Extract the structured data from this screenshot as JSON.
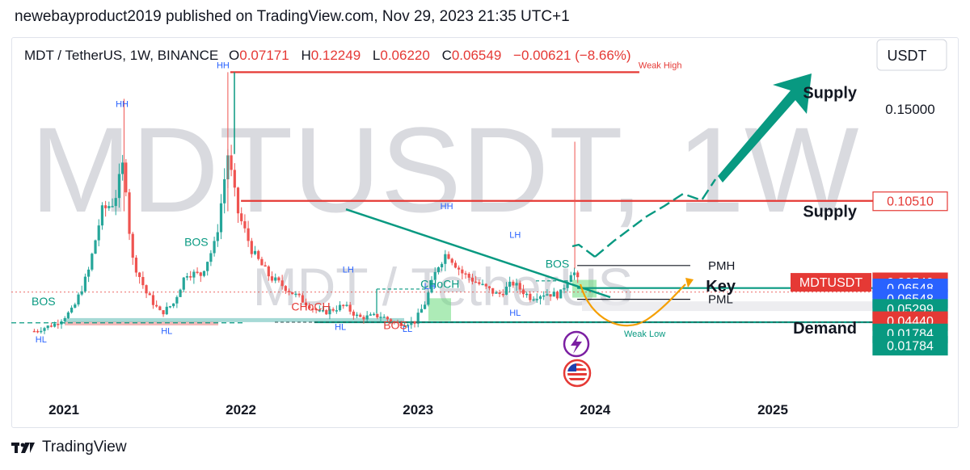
{
  "header": {
    "publisher_line": "newebayproduct2019 published on TradingView.com, Nov 29, 2023 21:35 UTC+1"
  },
  "footer": {
    "brand": "TradingView"
  },
  "symbol": {
    "name": "MDT / TetherUS, 1W, BINANCE",
    "o_label": "O",
    "open": "0.07171",
    "h_label": "H",
    "high": "0.12249",
    "l_label": "L",
    "low": "0.06220",
    "c_label": "C",
    "close": "0.06549",
    "change": "−0.00621 (−8.66%)",
    "watermark": "MDTUSDT, 1W",
    "watermark_small": "MDT / TetherUS"
  },
  "colors": {
    "up": "#26a69a",
    "down": "#ef5350",
    "trend": "#089981",
    "red_line": "#e53935",
    "orange": "#f59f00",
    "blue_tag": "#2962ff",
    "grey_text": "#131722"
  },
  "chart_data": {
    "type": "candlestick",
    "title": "MDT / TetherUS, 1W, BINANCE",
    "currency": "USDT",
    "x_ticks": [
      "2021",
      "2022",
      "2023",
      "2024",
      "2025"
    ],
    "x_tick_dates": [
      "2021-01-01",
      "2022-01-01",
      "2023-01-01",
      "2024-01-01",
      "2025-01-01"
    ],
    "y_ticks": [
      "0.15000"
    ],
    "y_tick_values": [
      0.15
    ],
    "price_tags": [
      {
        "label": "",
        "value": "0.10510",
        "style": "red-outline",
        "price": 0.1051
      },
      {
        "label": "MDTUSDT",
        "value": "0.06549",
        "style": "red",
        "price": 0.06549
      },
      {
        "label": "",
        "value": "0.06548",
        "style": "blue",
        "price": 0.0625
      },
      {
        "label": "",
        "value": "0.06548",
        "style": "blue",
        "price": 0.0575
      },
      {
        "label": "",
        "value": "0.05299",
        "style": "green",
        "price": 0.0525
      },
      {
        "label": "",
        "value": "0.04440",
        "style": "red",
        "price": 0.0465
      },
      {
        "label": "",
        "value": "0.01784",
        "style": "green",
        "price": 0.0405
      },
      {
        "label": "",
        "value": "0.01784",
        "style": "green",
        "price": 0.0345
      }
    ],
    "levels": [
      {
        "label": "Weak High",
        "price": 0.168,
        "color": "red",
        "from": "2021-12-10",
        "to": "2024-04-01"
      },
      {
        "label": "Supply",
        "price": 0.1051,
        "color": "red",
        "from": "2022-01-01",
        "to": "2025-08-01"
      },
      {
        "label": "PMH",
        "price": 0.0735,
        "color": "black",
        "from": "2023-11-25",
        "to": "2024-07-15"
      },
      {
        "label": "Key",
        "price": 0.0625,
        "color": "green",
        "from": "2023-11-25",
        "to": "2025-08-01"
      },
      {
        "label": "PML",
        "price": 0.057,
        "color": "black",
        "from": "2023-11-25",
        "to": "2024-07-15"
      },
      {
        "label": "Weak Low",
        "price": 0.0458,
        "color": "green",
        "from": "2022-06-01",
        "to": "2025-08-01"
      }
    ],
    "zone_labels": [
      {
        "text": "Supply",
        "price": 0.158
      },
      {
        "text": "Supply",
        "price": 0.1
      },
      {
        "text": "Key",
        "price": 0.0635
      },
      {
        "text": "Demand",
        "price": 0.043
      }
    ],
    "structure_labels": [
      {
        "text": "HH",
        "date": "2021-05-01",
        "price": 0.151,
        "color": "blue"
      },
      {
        "text": "HH",
        "date": "2021-11-25",
        "price": 0.17,
        "color": "blue"
      },
      {
        "text": "HH",
        "date": "2023-03-01",
        "price": 0.101,
        "color": "blue"
      },
      {
        "text": "LH",
        "date": "2022-08-10",
        "price": 0.07,
        "color": "blue"
      },
      {
        "text": "LH",
        "date": "2023-01-25",
        "price": 0.062,
        "color": "blue"
      },
      {
        "text": "LH",
        "date": "2023-07-20",
        "price": 0.087,
        "color": "blue"
      },
      {
        "text": "HL",
        "date": "2020-11-15",
        "price": 0.036,
        "color": "blue"
      },
      {
        "text": "HL",
        "date": "2021-08-01",
        "price": 0.04,
        "color": "blue"
      },
      {
        "text": "HL",
        "date": "2022-07-25",
        "price": 0.042,
        "color": "blue"
      },
      {
        "text": "HL",
        "date": "2023-07-20",
        "price": 0.049,
        "color": "blue"
      },
      {
        "text": "LL",
        "date": "2022-12-10",
        "price": 0.041,
        "color": "blue"
      },
      {
        "text": "BOS",
        "date": "2020-11-20",
        "price": 0.054,
        "color": "green"
      },
      {
        "text": "BOS",
        "date": "2021-10-01",
        "price": 0.083,
        "color": "green"
      },
      {
        "text": "BOS",
        "date": "2023-10-15",
        "price": 0.0725,
        "color": "green"
      },
      {
        "text": "BOS",
        "date": "2022-11-15",
        "price": 0.0425,
        "color": "red"
      },
      {
        "text": "CHoCH",
        "date": "2022-05-25",
        "price": 0.0515,
        "color": "red"
      },
      {
        "text": "CHoCH",
        "date": "2023-02-15",
        "price": 0.0625,
        "color": "green"
      }
    ],
    "candles_approx": [
      {
        "date": "2020-11-01",
        "close": 0.0415
      },
      {
        "date": "2020-12-15",
        "close": 0.045
      },
      {
        "date": "2021-01-20",
        "close": 0.052
      },
      {
        "date": "2021-02-20",
        "close": 0.07
      },
      {
        "date": "2021-03-20",
        "close": 0.1
      },
      {
        "date": "2021-04-15",
        "close": 0.105
      },
      {
        "date": "2021-05-05",
        "close": 0.125
      },
      {
        "date": "2021-05-20",
        "close": 0.078
      },
      {
        "date": "2021-06-20",
        "close": 0.06
      },
      {
        "date": "2021-07-20",
        "close": 0.05
      },
      {
        "date": "2021-08-15",
        "close": 0.055
      },
      {
        "date": "2021-09-10",
        "close": 0.07
      },
      {
        "date": "2021-10-10",
        "close": 0.069
      },
      {
        "date": "2021-11-10",
        "close": 0.085
      },
      {
        "date": "2021-12-05",
        "close": 0.128
      },
      {
        "date": "2021-12-25",
        "close": 0.1
      },
      {
        "date": "2022-01-25",
        "close": 0.08
      },
      {
        "date": "2022-03-01",
        "close": 0.068
      },
      {
        "date": "2022-04-01",
        "close": 0.063
      },
      {
        "date": "2022-05-10",
        "close": 0.056
      },
      {
        "date": "2022-06-15",
        "close": 0.05
      },
      {
        "date": "2022-08-01",
        "close": 0.054
      },
      {
        "date": "2022-09-01",
        "close": 0.048
      },
      {
        "date": "2022-10-15",
        "close": 0.049
      },
      {
        "date": "2022-11-20",
        "close": 0.045
      },
      {
        "date": "2022-12-25",
        "close": 0.046
      },
      {
        "date": "2023-01-15",
        "close": 0.055
      },
      {
        "date": "2023-02-10",
        "close": 0.073
      },
      {
        "date": "2023-03-01",
        "close": 0.08
      },
      {
        "date": "2023-04-01",
        "close": 0.07
      },
      {
        "date": "2023-05-10",
        "close": 0.064
      },
      {
        "date": "2023-06-15",
        "close": 0.059
      },
      {
        "date": "2023-07-15",
        "close": 0.065
      },
      {
        "date": "2023-08-20",
        "close": 0.058
      },
      {
        "date": "2023-09-20",
        "close": 0.06
      },
      {
        "date": "2023-10-20",
        "close": 0.059
      },
      {
        "date": "2023-11-15",
        "close": 0.072
      },
      {
        "date": "2023-11-27",
        "close": 0.06549
      }
    ],
    "grid": false
  }
}
